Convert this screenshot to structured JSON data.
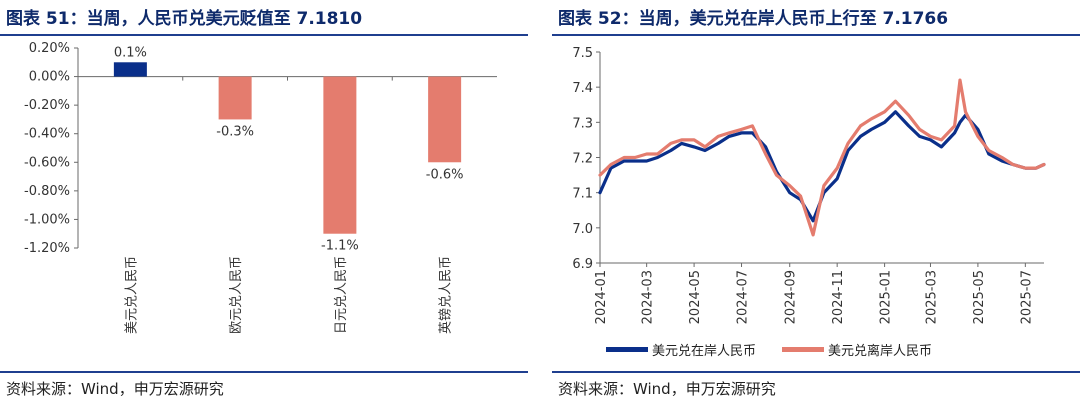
{
  "colors": {
    "title": "#0e2a6b",
    "rule": "#1f3f8f",
    "navy": "#0a2f8a",
    "salmon": "#e47c6e",
    "axis": "#6a6a6a"
  },
  "left": {
    "title": "图表 51：当周，人民币兑美元贬值至 7.1810",
    "source": "资料来源：Wind，申万宏源研究",
    "chart_data": {
      "type": "bar",
      "categories": [
        "美元兑人民币",
        "欧元兑人民币",
        "日元兑人民币",
        "英镑兑人民币"
      ],
      "values": [
        0.1,
        -0.3,
        -1.1,
        -0.6
      ],
      "value_labels": [
        "0.1%",
        "-0.3%",
        "-1.1%",
        "-0.6%"
      ],
      "bar_colors": [
        "#0a2f8a",
        "#e47c6e",
        "#e47c6e",
        "#e47c6e"
      ],
      "ylim": [
        -1.2,
        0.2
      ],
      "yticks": [
        0.2,
        0.0,
        -0.2,
        -0.4,
        -0.6,
        -0.8,
        -1.0,
        -1.2
      ],
      "ytick_labels": [
        "0.20%",
        "0.00%",
        "-0.20%",
        "-0.40%",
        "-0.60%",
        "-0.80%",
        "-1.00%",
        "-1.20%"
      ],
      "grid": false
    }
  },
  "right": {
    "title": "图表 52：当周，美元兑在岸人民币上行至 7.1766",
    "source": "资料来源：Wind，申万宏源研究",
    "chart_data": {
      "type": "line",
      "ylim": [
        6.9,
        7.5
      ],
      "yticks": [
        6.9,
        7.0,
        7.1,
        7.2,
        7.3,
        7.4,
        7.5
      ],
      "ytick_labels": [
        "6.9",
        "7.0",
        "7.1",
        "7.2",
        "7.3",
        "7.4",
        "7.5"
      ],
      "xlim": [
        "2024-01",
        "2025-07"
      ],
      "xtick_labels": [
        "2024-01",
        "2024-03",
        "2024-05",
        "2024-07",
        "2024-09",
        "2024-11",
        "2025-01",
        "2025-03",
        "2025-05",
        "2025-07"
      ],
      "legend_position": "bottom",
      "grid": false,
      "x": [
        "2024-01-01",
        "2024-01-15",
        "2024-02-01",
        "2024-02-15",
        "2024-03-01",
        "2024-03-15",
        "2024-04-01",
        "2024-04-15",
        "2024-05-01",
        "2024-05-15",
        "2024-06-01",
        "2024-06-15",
        "2024-07-01",
        "2024-07-15",
        "2024-08-01",
        "2024-08-15",
        "2024-09-01",
        "2024-09-15",
        "2024-10-01",
        "2024-10-15",
        "2024-11-01",
        "2024-11-15",
        "2024-12-01",
        "2024-12-15",
        "2025-01-01",
        "2025-01-15",
        "2025-02-01",
        "2025-02-15",
        "2025-03-01",
        "2025-03-15",
        "2025-04-01",
        "2025-04-08",
        "2025-04-15",
        "2025-05-01",
        "2025-05-15",
        "2025-06-01",
        "2025-06-15",
        "2025-07-01",
        "2025-07-15",
        "2025-07-25"
      ],
      "series": [
        {
          "name": "美元兑在岸人民币",
          "values": [
            7.1,
            7.17,
            7.19,
            7.19,
            7.19,
            7.2,
            7.22,
            7.24,
            7.23,
            7.22,
            7.24,
            7.26,
            7.27,
            7.27,
            7.23,
            7.16,
            7.1,
            7.08,
            7.02,
            7.1,
            7.14,
            7.22,
            7.26,
            7.28,
            7.3,
            7.33,
            7.29,
            7.26,
            7.25,
            7.23,
            7.27,
            7.3,
            7.32,
            7.28,
            7.21,
            7.19,
            7.18,
            7.17,
            7.17,
            7.18
          ]
        },
        {
          "name": "美元兑离岸人民币",
          "values": [
            7.15,
            7.18,
            7.2,
            7.2,
            7.21,
            7.21,
            7.24,
            7.25,
            7.25,
            7.23,
            7.26,
            7.27,
            7.28,
            7.29,
            7.21,
            7.15,
            7.12,
            7.09,
            6.98,
            7.12,
            7.17,
            7.24,
            7.29,
            7.31,
            7.33,
            7.36,
            7.32,
            7.28,
            7.26,
            7.25,
            7.29,
            7.42,
            7.33,
            7.26,
            7.22,
            7.2,
            7.18,
            7.17,
            7.17,
            7.18
          ]
        }
      ]
    }
  }
}
